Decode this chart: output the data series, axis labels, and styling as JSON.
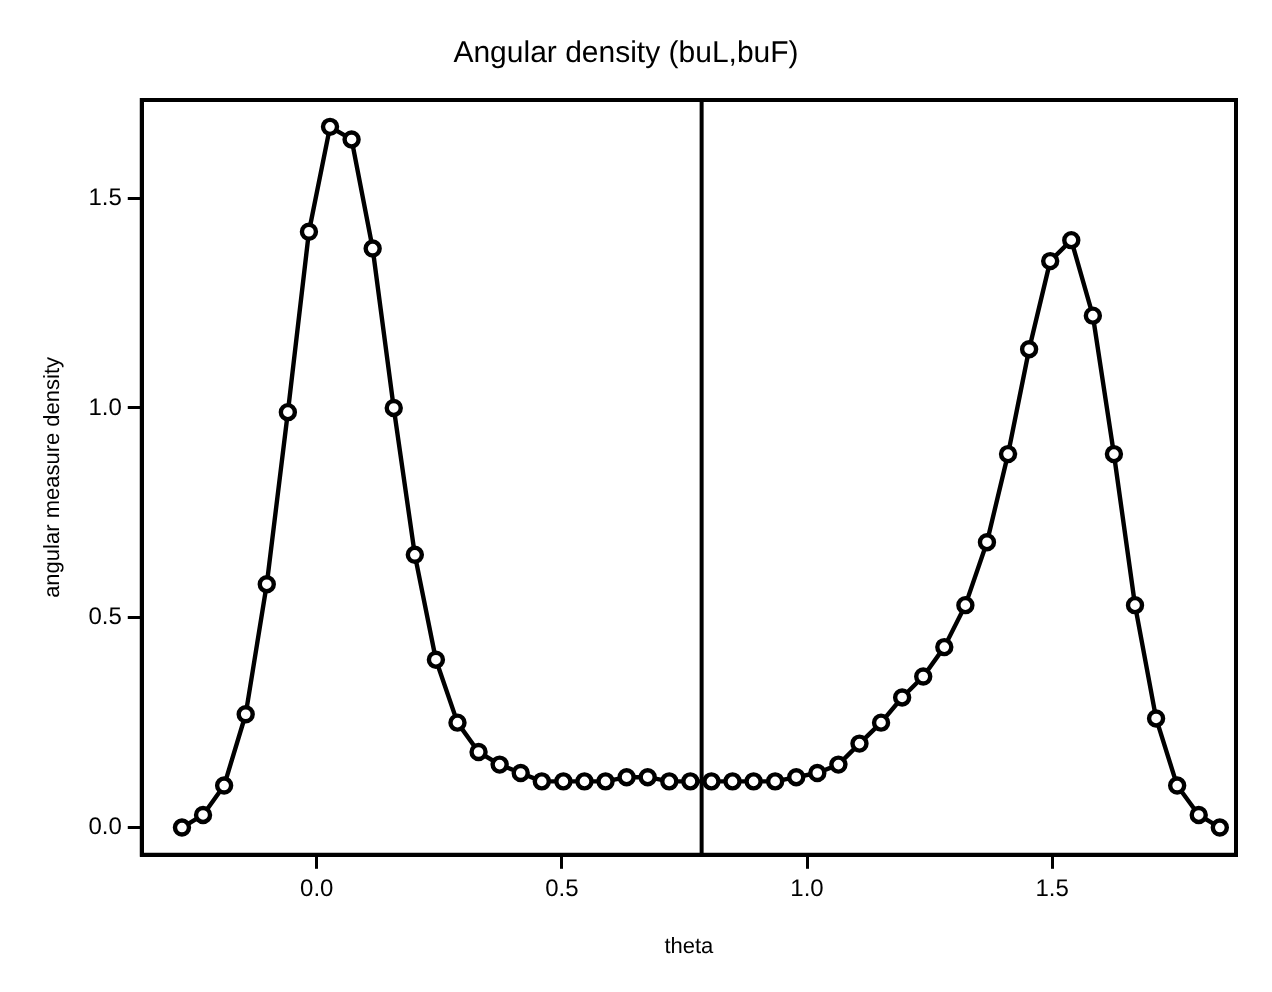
{
  "chart_data": {
    "type": "line",
    "title": "Angular density (buL,buF)",
    "xlabel": "theta",
    "ylabel": "angular measure density",
    "x": [
      -0.275,
      -0.232,
      -0.189,
      -0.145,
      -0.102,
      -0.059,
      -0.016,
      0.027,
      0.071,
      0.114,
      0.157,
      0.2,
      0.243,
      0.287,
      0.33,
      0.373,
      0.416,
      0.459,
      0.503,
      0.546,
      0.589,
      0.632,
      0.675,
      0.719,
      0.762,
      0.805,
      0.848,
      0.891,
      0.935,
      0.978,
      1.021,
      1.064,
      1.107,
      1.151,
      1.194,
      1.237,
      1.28,
      1.323,
      1.367,
      1.41,
      1.453,
      1.496,
      1.539,
      1.583,
      1.626,
      1.669,
      1.712,
      1.755,
      1.799,
      1.842
    ],
    "series": [
      {
        "color": "#000000",
        "values": [
          0.0,
          0.03,
          0.1,
          0.27,
          0.58,
          0.99,
          1.42,
          1.67,
          1.64,
          1.38,
          1.0,
          0.65,
          0.4,
          0.25,
          0.18,
          0.15,
          0.13,
          0.11,
          0.11,
          0.11,
          0.11,
          0.12,
          0.12,
          0.11,
          0.11,
          0.11,
          0.11,
          0.11,
          0.11,
          0.12,
          0.13,
          0.15,
          0.2,
          0.25,
          0.31,
          0.36,
          0.43,
          0.53,
          0.68,
          0.89,
          1.14,
          1.35,
          1.4,
          1.22,
          0.89,
          0.53,
          0.26,
          0.1,
          0.03,
          0.0
        ]
      }
    ],
    "xlim": [
      -0.357,
      1.875
    ],
    "ylim": [
      -0.065,
      1.734
    ],
    "xticks": [
      {
        "value": 0,
        "label": "0.0"
      },
      0.5,
      {
        "value": 1,
        "label": "1.0"
      },
      1.5
    ],
    "yticks": [
      {
        "value": 0,
        "label": "0.0"
      },
      0.5,
      {
        "value": 1,
        "label": "1.0"
      },
      1.5
    ],
    "ref_lines": [
      {
        "axis": "x",
        "value": 0.785,
        "color": "#000000"
      }
    ],
    "grid": false,
    "legend": false,
    "marker": "circle",
    "line_style": "solid"
  }
}
